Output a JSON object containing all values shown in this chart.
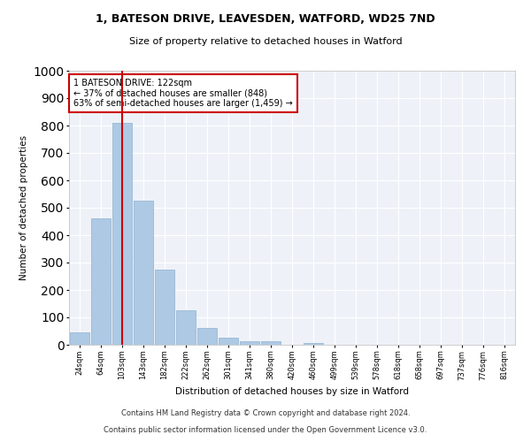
{
  "title_line1": "1, BATESON DRIVE, LEAVESDEN, WATFORD, WD25 7ND",
  "title_line2": "Size of property relative to detached houses in Watford",
  "xlabel": "Distribution of detached houses by size in Watford",
  "ylabel": "Number of detached properties",
  "footer_line1": "Contains HM Land Registry data © Crown copyright and database right 2024.",
  "footer_line2": "Contains public sector information licensed under the Open Government Licence v3.0.",
  "annotation_line1": "1 BATESON DRIVE: 122sqm",
  "annotation_line2": "← 37% of detached houses are smaller (848)",
  "annotation_line3": "63% of semi-detached houses are larger (1,459) →",
  "property_size": 122,
  "bar_color": "#aec9e4",
  "bar_edge_color": "#8fb0d0",
  "vline_color": "#cc0000",
  "annotation_box_color": "#cc0000",
  "background_color": "#eef2f8",
  "categories": [
    "24sqm",
    "64sqm",
    "103sqm",
    "143sqm",
    "182sqm",
    "222sqm",
    "262sqm",
    "301sqm",
    "341sqm",
    "380sqm",
    "420sqm",
    "460sqm",
    "499sqm",
    "539sqm",
    "578sqm",
    "618sqm",
    "658sqm",
    "697sqm",
    "737sqm",
    "776sqm",
    "816sqm"
  ],
  "bin_width": 39,
  "values": [
    45,
    460,
    810,
    525,
    275,
    125,
    60,
    25,
    12,
    12,
    0,
    8,
    0,
    0,
    0,
    0,
    0,
    0,
    0,
    0,
    0
  ],
  "ylim": [
    0,
    1000
  ],
  "yticks": [
    0,
    100,
    200,
    300,
    400,
    500,
    600,
    700,
    800,
    900,
    1000
  ]
}
